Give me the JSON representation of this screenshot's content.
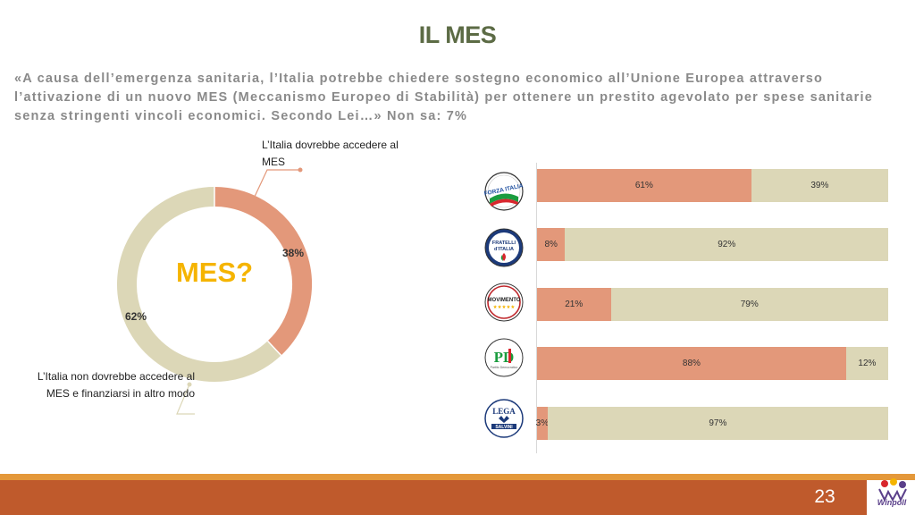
{
  "slide": {
    "title": "IL MES",
    "question": "«A causa dell’emergenza sanitaria, l’Italia potrebbe chiedere sostegno economico all’Unione Europea attraverso l’attivazione di un nuovo MES (Meccanismo Europeo di Stabilità) per ottenere un prestito agevolato per spese sanitarie senza stringenti vincoli economici. Secondo Lei…» Non sa: 7%",
    "page_number": "23",
    "brand": "Winpoll"
  },
  "colors": {
    "yes": "#e3987a",
    "no": "#dcd7b7",
    "title": "#5c6b45",
    "footer": "#bf5a2c",
    "center": "#f5b400"
  },
  "chart_data": [
    {
      "type": "pie",
      "center_label": "MES?",
      "slices": [
        {
          "label": "L’Italia dovrebbe accedere al MES",
          "value": 38,
          "value_label": "38%"
        },
        {
          "label": "L’Italia non dovrebbe accedere al MES e finanziarsi in altro modo",
          "value": 62,
          "value_label": "62%"
        }
      ]
    },
    {
      "type": "bar",
      "orientation": "horizontal",
      "stacked": true,
      "categories": [
        "Forza Italia",
        "Fratelli d'Italia",
        "Movimento 5 Stelle",
        "Partito Democratico",
        "Lega Salvini Premier"
      ],
      "series": [
        {
          "values": [
            61,
            8,
            21,
            88,
            3
          ],
          "labels": [
            "61%",
            "8%",
            "21%",
            "88%",
            "3%"
          ]
        },
        {
          "values": [
            39,
            92,
            79,
            12,
            97
          ],
          "labels": [
            "39%",
            "92%",
            "79%",
            "12%",
            "97%"
          ]
        }
      ]
    }
  ],
  "party_logos": [
    {
      "icon": "forza-italia-logo",
      "text": "FORZA ITALIA"
    },
    {
      "icon": "fratelli-ditalia-logo",
      "text_top": "FRATELLI",
      "text_bottom": "d'ITALIA"
    },
    {
      "icon": "movimento-5-stelle-logo",
      "text": "MOVIMENTO",
      "stars": "★★★★★"
    },
    {
      "icon": "partito-democratico-logo",
      "text": "PD",
      "subtext": "Partito Democratico"
    },
    {
      "icon": "lega-salvini-logo",
      "text_top": "LEGA",
      "text_bottom": "SALVINI"
    }
  ]
}
